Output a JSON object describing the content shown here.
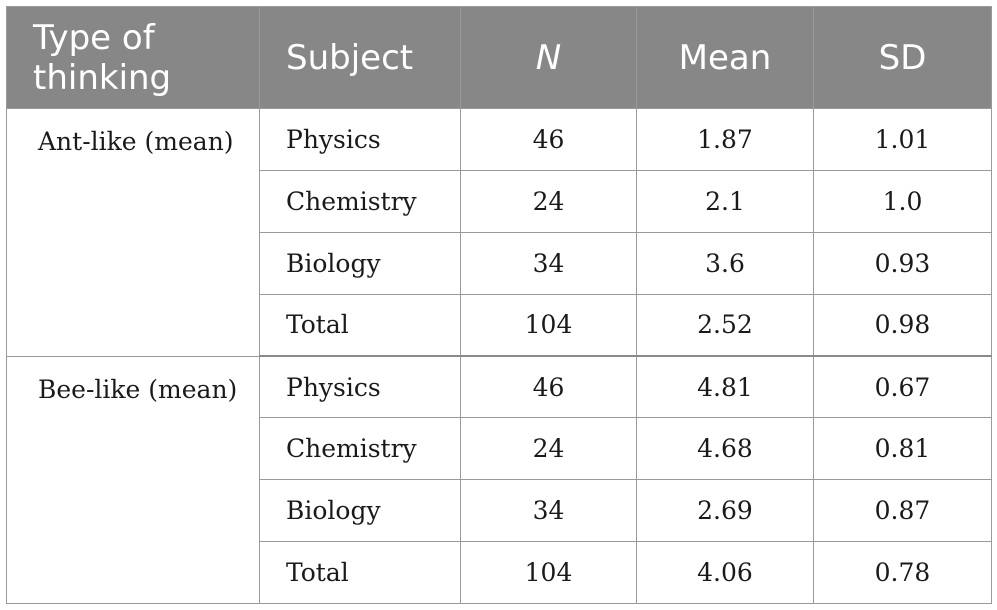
{
  "table": {
    "headers": {
      "type_of_thinking": "Type of thinking",
      "subject": "Subject",
      "n": "N",
      "mean": "Mean",
      "sd": "SD"
    },
    "groups": [
      {
        "label": "Ant-like (mean)",
        "rows": [
          {
            "subject": "Physics",
            "n": "46",
            "mean": "1.87",
            "sd": "1.01"
          },
          {
            "subject": "Chemistry",
            "n": "24",
            "mean": "2.1",
            "sd": "1.0"
          },
          {
            "subject": "Biology",
            "n": "34",
            "mean": "3.6",
            "sd": "0.93"
          },
          {
            "subject": "Total",
            "n": "104",
            "mean": "2.52",
            "sd": "0.98"
          }
        ]
      },
      {
        "label": "Bee-like (mean)",
        "rows": [
          {
            "subject": "Physics",
            "n": "46",
            "mean": "4.81",
            "sd": "0.67"
          },
          {
            "subject": "Chemistry",
            "n": "24",
            "mean": "4.68",
            "sd": "0.81"
          },
          {
            "subject": "Biology",
            "n": "34",
            "mean": "2.69",
            "sd": "0.87"
          },
          {
            "subject": "Total",
            "n": "104",
            "mean": "4.06",
            "sd": "0.78"
          }
        ]
      }
    ],
    "colors": {
      "header_background": "#878787",
      "header_text": "#ffffff",
      "border": "#9a9a9a"
    }
  }
}
